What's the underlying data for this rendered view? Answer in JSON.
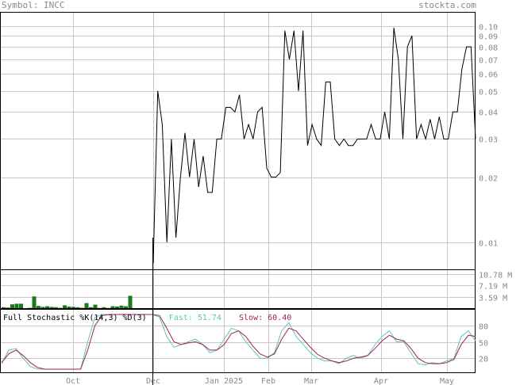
{
  "header": {
    "symbol_text": "Symbol: INCC",
    "site": "stockta.com"
  },
  "stochastic": {
    "label": "Full Stochastic %K(14,3) %D(3)",
    "fast_label": "Fast:",
    "fast_value": "51.74",
    "slow_label": "Slow:",
    "slow_value": "60.40",
    "fast_color": "#5ec4b8",
    "slow_color": "#a0205a"
  },
  "colors": {
    "price_line": "#000000",
    "volume_bar": "#1a7a1a",
    "grid": "#c8c8c8",
    "label": "#888888"
  },
  "chart_data": [
    {
      "type": "line",
      "scale": "log",
      "ylim": [
        0.0075,
        0.115
      ],
      "y_ticks": [
        0.01,
        0.02,
        0.03,
        0.04,
        0.05,
        0.06,
        0.07,
        0.08,
        0.09,
        0.1
      ],
      "y_tick_labels": [
        "0.01",
        "0.02",
        "0.03",
        "0.04",
        "0.05",
        "0.06",
        "0.07",
        "0.08",
        "0.09",
        "0.10"
      ],
      "x_labels": [
        "Oct",
        "Dec",
        "Jan 2025",
        "Feb",
        "Mar",
        "Apr",
        "May"
      ],
      "series": [
        {
          "values": [
            0.008,
            0.05,
            0.035,
            0.01,
            0.03,
            0.0105,
            0.02,
            0.032,
            0.02,
            0.03,
            0.018,
            0.025,
            0.017,
            0.017,
            0.03,
            0.03,
            0.042,
            0.042,
            0.04,
            0.048,
            0.03,
            0.035,
            0.03,
            0.04,
            0.042,
            0.022,
            0.02,
            0.02,
            0.021,
            0.095,
            0.07,
            0.095,
            0.05,
            0.095,
            0.028,
            0.035,
            0.03,
            0.028,
            0.055,
            0.055,
            0.03,
            0.028,
            0.03,
            0.028,
            0.028,
            0.03,
            0.03,
            0.03,
            0.035,
            0.03,
            0.03,
            0.04,
            0.03,
            0.098,
            0.07,
            0.03,
            0.08,
            0.09,
            0.03,
            0.035,
            0.03,
            0.037,
            0.03,
            0.038,
            0.03,
            0.03,
            0.04,
            0.04,
            0.063,
            0.08,
            0.08,
            0.03
          ]
        }
      ]
    },
    {
      "type": "bar",
      "y_tick_labels": [
        "10.78 M",
        "7.19 M",
        "3.59 M"
      ],
      "values": [
        0.3,
        0.2,
        1.2,
        1.4,
        1.4,
        0.0,
        0.1,
        3.7,
        0.7,
        0.4,
        0.6,
        0.4,
        0.3,
        0.1,
        0.9,
        0.5,
        0.4,
        0.3,
        0.1,
        1.6,
        0.3,
        1.1,
        0.05,
        0.3,
        0.05,
        0.6,
        0.5,
        0.8,
        0.6,
        3.9
      ]
    },
    {
      "type": "line",
      "ylim": [
        0,
        100
      ],
      "y_ticks": [
        20,
        50,
        80
      ],
      "y_tick_labels": [
        "20",
        "50",
        "80"
      ],
      "series": [
        {
          "name": "Fast",
          "values": [
            10,
            35,
            38,
            20,
            5,
            0,
            0,
            0,
            0,
            0,
            0,
            0,
            50,
            95,
            100,
            100,
            100,
            100,
            100,
            100,
            100,
            100,
            95,
            60,
            40,
            45,
            50,
            55,
            45,
            30,
            35,
            55,
            75,
            70,
            50,
            35,
            20,
            20,
            30,
            70,
            85,
            60,
            45,
            30,
            20,
            15,
            15,
            10,
            20,
            25,
            20,
            25,
            45,
            60,
            70,
            50,
            50,
            30,
            10,
            8,
            12,
            10,
            15,
            20,
            60,
            70,
            52
          ]
        },
        {
          "name": "Slow",
          "values": [
            12,
            28,
            35,
            25,
            12,
            3,
            0,
            0,
            0,
            0,
            0,
            0,
            35,
            80,
            98,
            100,
            100,
            100,
            100,
            100,
            100,
            100,
            98,
            75,
            50,
            45,
            48,
            50,
            45,
            35,
            35,
            45,
            65,
            70,
            60,
            42,
            28,
            22,
            28,
            55,
            75,
            70,
            55,
            40,
            27,
            20,
            15,
            12,
            15,
            20,
            22,
            25,
            38,
            52,
            62,
            55,
            52,
            38,
            20,
            12,
            10,
            10,
            12,
            18,
            45,
            62,
            60
          ]
        }
      ]
    }
  ]
}
